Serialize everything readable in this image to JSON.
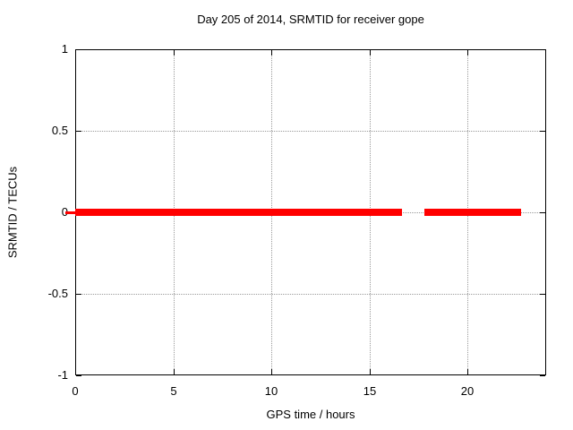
{
  "chart_data": {
    "type": "line",
    "title": "Day 205 of 2014, SRMTID for receiver gope",
    "xlabel": "GPS time / hours",
    "ylabel": "SRMTID / TECUs",
    "xlim": [
      0,
      24
    ],
    "ylim": [
      -1,
      1
    ],
    "xtick_values": [
      0,
      5,
      10,
      15,
      20
    ],
    "xtick_labels": [
      "0",
      "5",
      "10",
      "15",
      "20"
    ],
    "ytick_values": [
      1,
      0.5,
      0,
      -0.5,
      -1
    ],
    "ytick_labels": [
      "1",
      "0.5",
      "0",
      "-0.5",
      "-1"
    ],
    "grid": true,
    "legend": "none",
    "series": [
      {
        "name": "SRMTID",
        "color": "#ff0000",
        "style": "thick horizontal line at constant value",
        "y_value": 0,
        "segments_hours": [
          [
            0,
            16.65
          ],
          [
            17.8,
            22.72
          ]
        ],
        "left_edge_overhang_marker": true
      }
    ]
  },
  "colors": {
    "background": "#ffffff",
    "border": "#000000",
    "grid": "#9a9a9a",
    "text": "#000000",
    "line": "#ff0000"
  }
}
